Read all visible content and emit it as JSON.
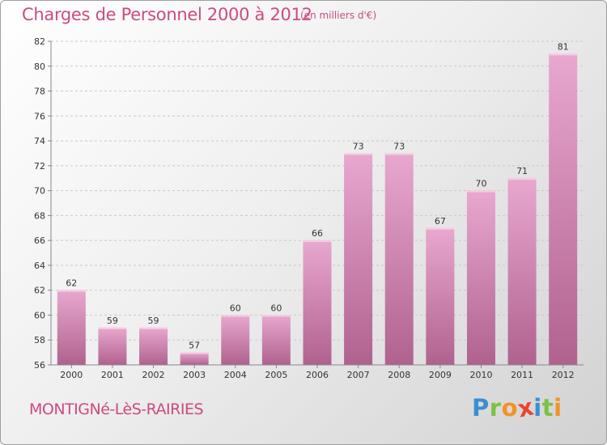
{
  "header": {
    "title": "Charges de Personnel 2000 à 2012",
    "subtitle": "(en milliers d'€)"
  },
  "footer": {
    "commune": "MONTIGNé-LèS-RAIRIES",
    "brand": [
      "P",
      "r",
      "o",
      "x",
      "i",
      "t",
      "i"
    ]
  },
  "colors": {
    "title": "#cc4a82",
    "bar_top": "#e8a8cf",
    "bar_bottom": "#b0628e",
    "axis": "#888888",
    "grid": "#c8c8c8"
  },
  "chart_data": {
    "type": "bar",
    "title": "Charges de Personnel 2000 à 2012",
    "xlabel": "",
    "ylabel": "",
    "categories": [
      "2000",
      "2001",
      "2002",
      "2003",
      "2004",
      "2005",
      "2006",
      "2007",
      "2008",
      "2009",
      "2010",
      "2011",
      "2012"
    ],
    "values": [
      62,
      59,
      59,
      57,
      60,
      60,
      66,
      73,
      73,
      67,
      70,
      71,
      81
    ],
    "ylim": [
      56,
      82
    ],
    "yticks": [
      56,
      58,
      60,
      62,
      64,
      66,
      68,
      70,
      72,
      74,
      76,
      78,
      80,
      82
    ],
    "grid": "horizontal dashed",
    "data_labels": true
  }
}
